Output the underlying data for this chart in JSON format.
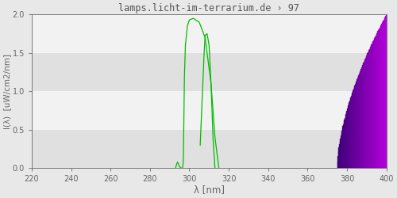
{
  "title": "lamps.licht-im-terrarium.de › 97",
  "xlabel": "λ [nm]",
  "ylabel": "I(λ)  [uW/cm2/nm]",
  "xlim": [
    220,
    400
  ],
  "ylim": [
    0.0,
    2.0
  ],
  "xticks": [
    220,
    240,
    260,
    280,
    300,
    320,
    340,
    360,
    380,
    400
  ],
  "yticks": [
    0.0,
    0.5,
    1.0,
    1.5,
    2.0
  ],
  "bg_color": "#e8e8e8",
  "plot_bg_color": "#ebebeb",
  "band_light": "#f2f2f2",
  "band_dark": "#e0e0e0",
  "title_color": "#555555",
  "axis_color": "#666666",
  "green_line_color": "#00bb00",
  "purple_start_x": 375,
  "purple_end_x": 400
}
